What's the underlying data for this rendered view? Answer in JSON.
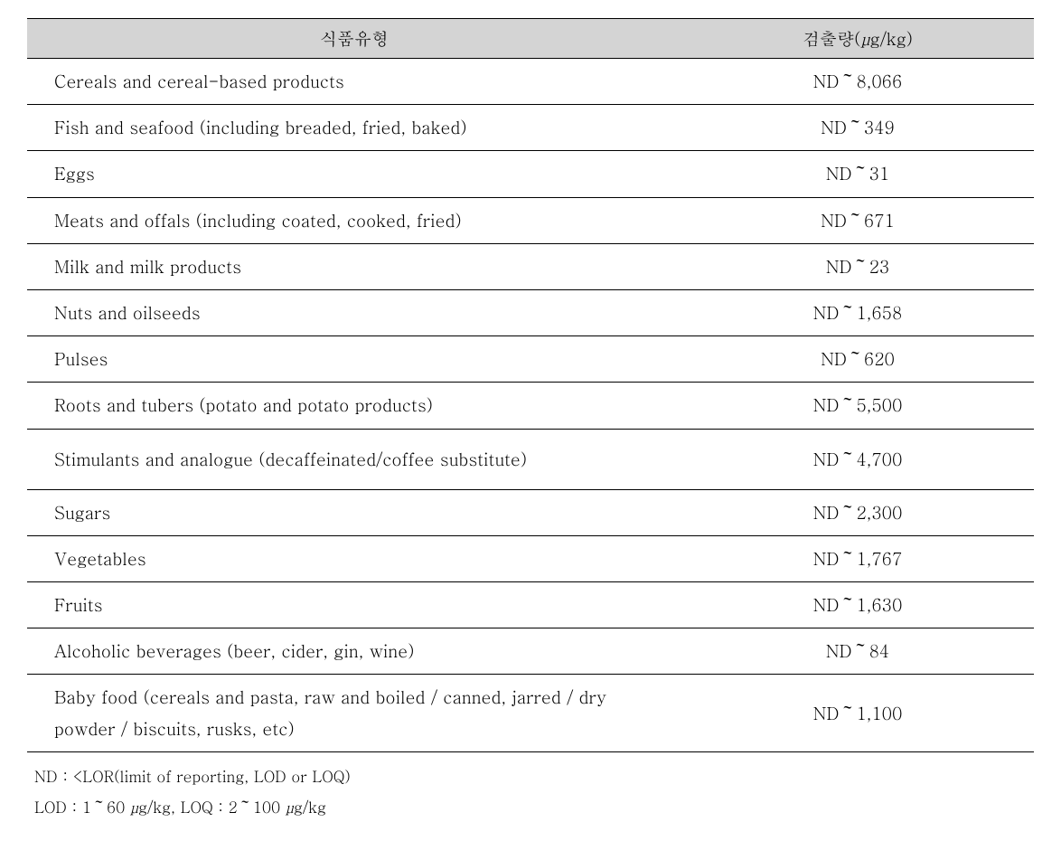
{
  "table": {
    "header": {
      "col1": "식품유형",
      "col2_prefix": "검출량(",
      "col2_unit_mu": "μ",
      "col2_suffix": "g/kg)"
    },
    "rows": [
      {
        "food": "Cereals and cereal-based products",
        "value": "ND～8,066",
        "tall": false
      },
      {
        "food": "Fish and seafood (including breaded, fried, baked)",
        "value": "ND～349",
        "tall": false
      },
      {
        "food": "Eggs",
        "value": "ND～31",
        "tall": false
      },
      {
        "food": "Meats and offals (including coated, cooked, fried)",
        "value": "ND～671",
        "tall": false
      },
      {
        "food": "Milk and milk products",
        "value": "ND～23",
        "tall": false
      },
      {
        "food": "Nuts and oilseeds",
        "value": "ND～1,658",
        "tall": false
      },
      {
        "food": "Pulses",
        "value": "ND～620",
        "tall": false
      },
      {
        "food": "Roots and tubers (potato and potato products)",
        "value": "ND～5,500",
        "tall": false
      },
      {
        "food": "Stimulants and analogue (decaffeinated/coffee substitute)",
        "value": "ND～4,700",
        "tall": true
      },
      {
        "food": "Sugars",
        "value": "ND～2,300",
        "tall": false
      },
      {
        "food": "Vegetables",
        "value": "ND～1,767",
        "tall": false
      },
      {
        "food": "Fruits",
        "value": "ND～1,630",
        "tall": false
      },
      {
        "food": "Alcoholic beverages (beer, cider, gin, wine)",
        "value": "ND～84",
        "tall": false
      },
      {
        "food": "Baby food (cereals and pasta, raw and boiled / canned, jarred / dry powder / biscuits, rusks, etc)",
        "value": "ND～1,100",
        "tall": false
      }
    ],
    "colors": {
      "header_bg": "#d4d4d4",
      "border": "#000000",
      "text": "#000000",
      "background": "#ffffff"
    },
    "font_sizes": {
      "body": 19,
      "footnote": 17
    }
  },
  "footnotes": {
    "line1": "ND : <LOR(limit of reporting, LOD or LOQ)",
    "line2_prefix": "LOD : 1～60 ",
    "line2_unit_mu": "μ",
    "line2_mid": "g/kg, LOQ : 2～100 ",
    "line2_unit_mu2": "μ",
    "line2_suffix": "g/kg"
  }
}
